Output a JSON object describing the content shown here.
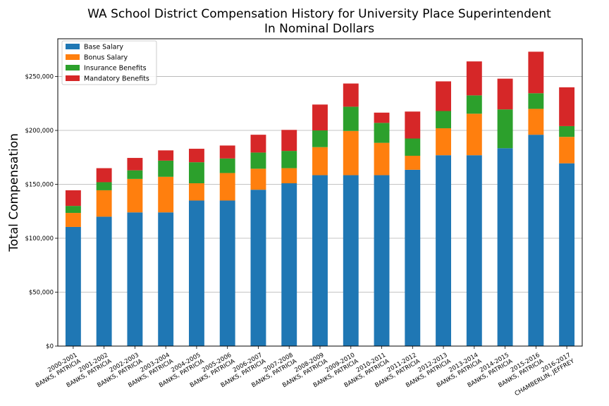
{
  "chart_data": {
    "type": "bar",
    "stacked": true,
    "title": [
      "WA School District Compensation History for University Place Superintendent",
      "In Nominal Dollars"
    ],
    "xlabel": "",
    "ylabel": "Total Compensation",
    "ylim": [
      0,
      285000
    ],
    "yticks": [
      0,
      50000,
      100000,
      150000,
      200000,
      250000
    ],
    "ytick_labels": [
      "$0",
      "$50,000",
      "$100,000",
      "$150,000",
      "$200,000",
      "$250,000"
    ],
    "grid": "horizontal",
    "legend_position": "upper-left",
    "categories": [
      [
        "2000-2001",
        "BANKS, PATRICIA"
      ],
      [
        "2001-2002",
        "BANKS, PATRICIA"
      ],
      [
        "2002-2003",
        "BANKS, PATRICIA"
      ],
      [
        "2003-2004",
        "BANKS, PATRICIA"
      ],
      [
        "2004-2005",
        "BANKS, PATRICIA"
      ],
      [
        "2005-2006",
        "BANKS, PATRICIA"
      ],
      [
        "2006-2007",
        "BANKS, PATRICIA"
      ],
      [
        "2007-2008",
        "BANKS, PATRICIA"
      ],
      [
        "2008-2009",
        "BANKS, PATRICIA"
      ],
      [
        "2009-2010",
        "BANKS, PATRICIA"
      ],
      [
        "2010-2011",
        "BANKS, PATRICIA"
      ],
      [
        "2011-2012",
        "BANKS, PATRICIA"
      ],
      [
        "2012-2013",
        "BANKS, PATRICIA"
      ],
      [
        "2013-2014",
        "BANKS, PATRICIA"
      ],
      [
        "2014-2015",
        "BANKS, PATRICIA"
      ],
      [
        "2015-2016",
        "BANKS, PATRICIA"
      ],
      [
        "2016-2017",
        "CHAMBERLIN, JEFFREY"
      ]
    ],
    "series": [
      {
        "name": "Base Salary",
        "color": "#1f77b4",
        "values": [
          110500,
          120000,
          124000,
          124000,
          135000,
          135000,
          145000,
          151000,
          158500,
          158500,
          158500,
          163500,
          177000,
          177000,
          183500,
          196000,
          169500
        ]
      },
      {
        "name": "Bonus Salary",
        "color": "#ff7f0e",
        "values": [
          13000,
          24500,
          31000,
          33000,
          16000,
          25500,
          19500,
          14000,
          26000,
          41000,
          30000,
          13000,
          25000,
          38500,
          0,
          24000,
          24500
        ]
      },
      {
        "name": "Insurance Benefits",
        "color": "#2ca02c",
        "values": [
          6500,
          7500,
          8000,
          15000,
          19500,
          13500,
          15000,
          16000,
          15500,
          22500,
          18500,
          16000,
          16000,
          17000,
          36000,
          14500,
          10000
        ]
      },
      {
        "name": "Mandatory Benefits",
        "color": "#d62728",
        "values": [
          14500,
          13000,
          11500,
          9500,
          12500,
          12000,
          16500,
          19500,
          24000,
          21500,
          9500,
          25000,
          27500,
          31500,
          28500,
          38500,
          36000
        ]
      }
    ]
  }
}
